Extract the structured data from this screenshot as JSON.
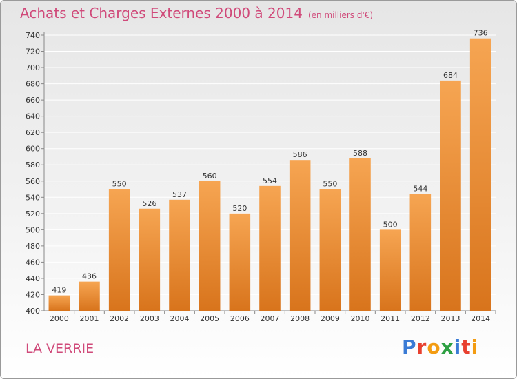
{
  "title": "Achats et Charges Externes 2000 à 2014",
  "subtitle": "(en milliers d'€)",
  "location": "LA VERRIE",
  "logo": {
    "text": "Proxiti",
    "colors": [
      "#3a7bd5",
      "#e8402f",
      "#f39c12",
      "#2ea043",
      "#3a7bd5",
      "#e8402f",
      "#f39c12"
    ]
  },
  "colors": {
    "bar_top": "#f6a552",
    "bar_bottom": "#d8741c",
    "title": "#d04a7a",
    "grid": "#ffffff"
  },
  "chart_data": {
    "type": "bar",
    "categories": [
      "2000",
      "2001",
      "2002",
      "2003",
      "2004",
      "2005",
      "2006",
      "2007",
      "2008",
      "2009",
      "2010",
      "2011",
      "2012",
      "2013",
      "2014"
    ],
    "values": [
      419,
      436,
      550,
      526,
      537,
      560,
      520,
      554,
      586,
      550,
      588,
      500,
      544,
      684,
      736
    ],
    "ylim": [
      400,
      740
    ],
    "yticks": [
      400,
      420,
      440,
      460,
      480,
      500,
      520,
      540,
      560,
      580,
      600,
      620,
      640,
      660,
      680,
      700,
      720,
      740
    ],
    "title": "Achats et Charges Externes 2000 à 2014",
    "xlabel": "",
    "ylabel": "",
    "grid": true
  }
}
